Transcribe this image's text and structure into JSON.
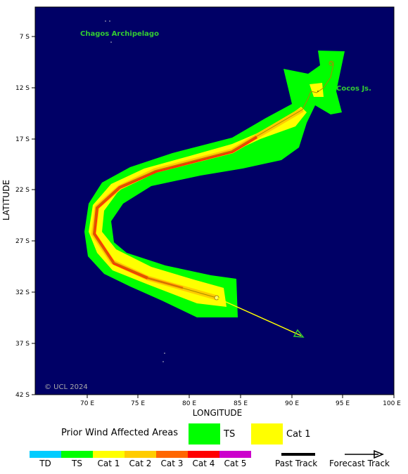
{
  "map": {
    "axis_x_label": "LONGITUDE",
    "axis_y_label": "LATITUDE",
    "x_ticks": [
      "70 E",
      "75 E",
      "80 E",
      "85 E",
      "90 E",
      "95 E",
      "100 E"
    ],
    "y_ticks": [
      "7 S",
      "12 S",
      "17 S",
      "22 S",
      "27 S",
      "32 S",
      "37 S",
      "42 S"
    ],
    "place_labels": [
      "Chagos Archipelago",
      "Cocos Js."
    ],
    "copyright": "© UCL 2024",
    "colors": {
      "ocean": "#000066",
      "ts": "#00ff00",
      "cat1": "#ffff00",
      "cat2": "#ffcc00",
      "cat3": "#ff6600",
      "cat4": "#ff0000",
      "label_green": "#33cc33",
      "forecast": "#ffff00"
    }
  },
  "legend": {
    "prior_title": "Prior Wind Affected Areas",
    "prior_items": [
      {
        "label": "TS",
        "color": "#00ff00"
      },
      {
        "label": "Cat 1",
        "color": "#ffff00"
      }
    ],
    "scale": [
      {
        "label": "TD",
        "color": "#00ccff"
      },
      {
        "label": "TS",
        "color": "#00ff00"
      },
      {
        "label": "Cat 1",
        "color": "#ffff00"
      },
      {
        "label": "Cat 2",
        "color": "#ffcc00"
      },
      {
        "label": "Cat 3",
        "color": "#ff6600"
      },
      {
        "label": "Cat 4",
        "color": "#ff0000"
      },
      {
        "label": "Cat 5",
        "color": "#cc00cc"
      }
    ],
    "past_track": "Past Track",
    "forecast_track": "Forecast Track"
  }
}
